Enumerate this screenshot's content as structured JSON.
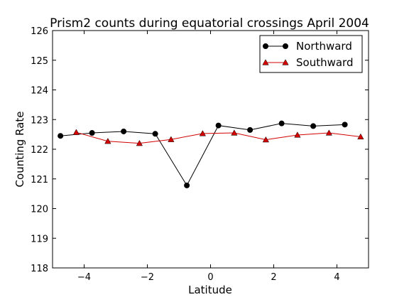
{
  "chart_data": {
    "type": "line",
    "title": "Prism2 counts during equatorial crossings April 2004",
    "xlabel": "Latitude",
    "ylabel": "Counting Rate",
    "xlim": [
      -5,
      5
    ],
    "ylim": [
      118,
      126
    ],
    "xticks": [
      -4,
      -2,
      0,
      2,
      4
    ],
    "yticks": [
      118,
      119,
      120,
      121,
      122,
      123,
      124,
      125,
      126
    ],
    "grid": false,
    "legend_position": "top-right",
    "series": [
      {
        "name": "Northward",
        "color": "#000000",
        "marker": "circle",
        "x": [
          -4.75,
          -3.75,
          -2.75,
          -1.75,
          -0.75,
          0.25,
          1.25,
          2.25,
          3.25,
          4.25
        ],
        "y": [
          122.45,
          122.55,
          122.6,
          122.52,
          120.78,
          122.8,
          122.65,
          122.87,
          122.78,
          122.83
        ]
      },
      {
        "name": "Southward",
        "color": "#d40000",
        "marker": "triangle",
        "x": [
          -4.25,
          -3.25,
          -2.25,
          -1.25,
          -0.25,
          0.75,
          1.75,
          2.75,
          3.75,
          4.75
        ],
        "y": [
          122.57,
          122.27,
          122.2,
          122.33,
          122.53,
          122.55,
          122.32,
          122.48,
          122.55,
          122.42
        ]
      }
    ]
  }
}
